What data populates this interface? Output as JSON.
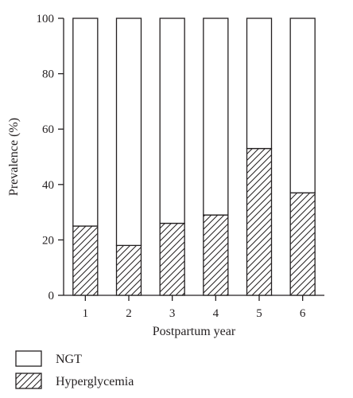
{
  "chart_data": {
    "type": "bar",
    "stacked": true,
    "categories": [
      "1",
      "2",
      "3",
      "4",
      "5",
      "6"
    ],
    "series": [
      {
        "name": "NGT",
        "values": [
          75,
          82,
          74,
          71,
          47,
          63
        ],
        "fill": "plain-white"
      },
      {
        "name": "Hyperglycemia",
        "values": [
          25,
          18,
          26,
          29,
          53,
          37
        ],
        "fill": "diagonal-hatch"
      }
    ],
    "xlabel": "Postpartum year",
    "ylabel": "Prevalence (%)",
    "ylim": [
      0,
      100
    ],
    "yticks": [
      0,
      20,
      40,
      60,
      80,
      100
    ],
    "grid": false,
    "legend_position": "bottom-left",
    "colors": {
      "stroke": "#231f20",
      "background": "#ffffff"
    }
  }
}
